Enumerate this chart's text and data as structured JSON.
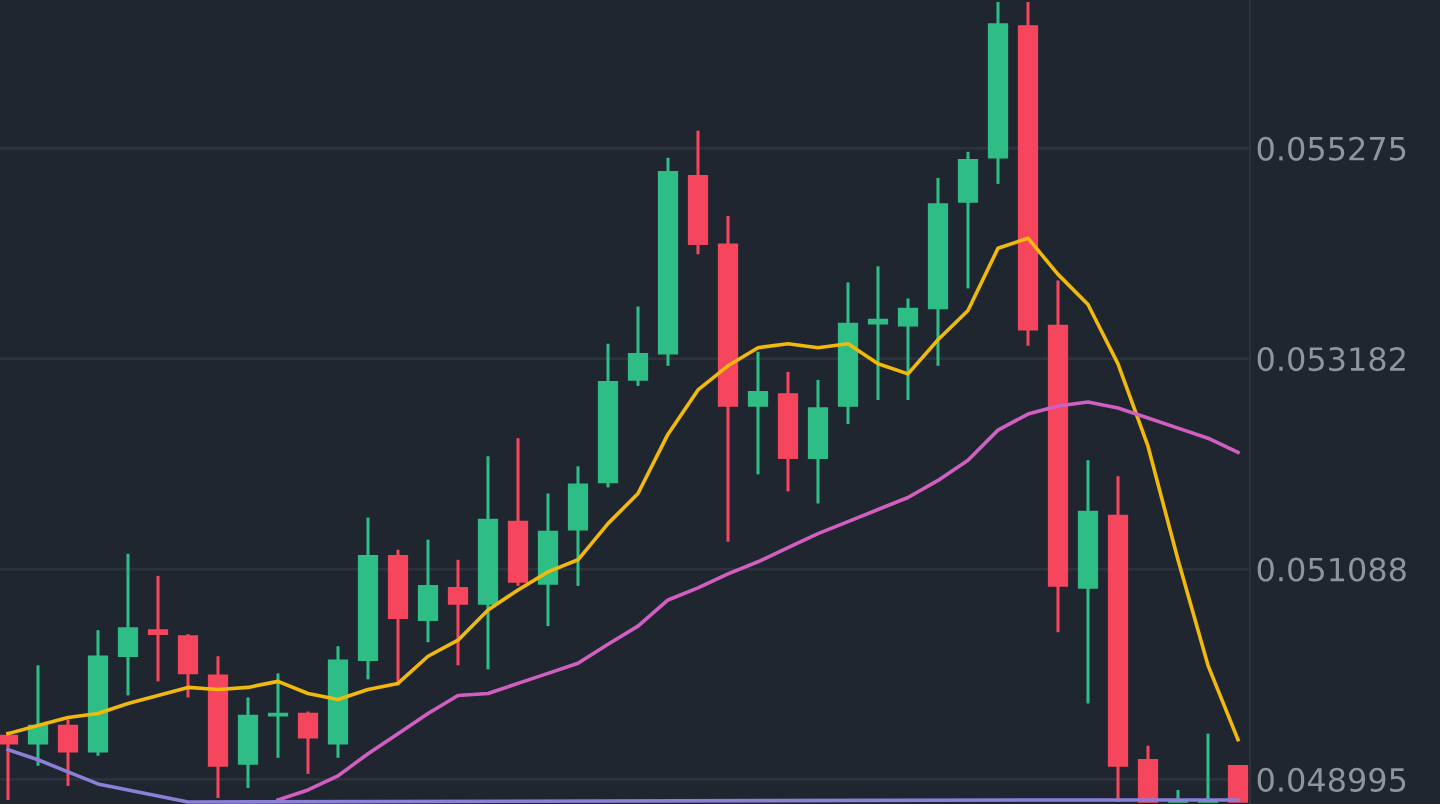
{
  "chart_data": {
    "type": "candlestick",
    "categories": [
      null,
      null,
      null,
      null,
      null,
      null,
      null,
      null,
      null,
      null,
      null,
      null,
      null,
      null,
      null,
      null,
      null,
      null,
      null,
      null,
      null,
      null,
      null,
      null,
      null,
      null,
      null,
      null,
      null,
      null,
      null,
      null,
      null,
      null,
      null,
      null,
      null,
      null,
      null,
      null,
      null,
      null
    ],
    "ohlc": [
      [
        0.04943,
        0.04947,
        0.04879,
        0.04935
      ],
      [
        0.04935,
        0.05013,
        0.04913,
        0.04953
      ],
      [
        0.04953,
        0.04959,
        0.04893,
        0.04927
      ],
      [
        0.04927,
        0.05048,
        0.04923,
        0.05022
      ],
      [
        0.05022,
        0.05124,
        0.04983,
        0.0505
      ],
      [
        0.05048,
        0.05102,
        0.04997,
        0.05044
      ],
      [
        0.05042,
        0.05044,
        0.04981,
        0.05005
      ],
      [
        0.05003,
        0.05022,
        0.04881,
        0.04913
      ],
      [
        0.04915,
        0.04981,
        0.04891,
        0.04963
      ],
      [
        0.04963,
        0.05005,
        0.04921,
        0.04965
      ],
      [
        0.04965,
        0.04967,
        0.04905,
        0.04941
      ],
      [
        0.04935,
        0.05032,
        0.04921,
        0.05018
      ],
      [
        0.05018,
        0.0516,
        0.04999,
        0.05122
      ],
      [
        0.05122,
        0.05128,
        0.04993,
        0.0506
      ],
      [
        0.05058,
        0.05138,
        0.05036,
        0.05092
      ],
      [
        0.0509,
        0.05118,
        0.05013,
        0.05074
      ],
      [
        0.05074,
        0.05221,
        0.05009,
        0.05158
      ],
      [
        0.05156,
        0.05239,
        0.05092,
        0.05096
      ],
      [
        0.05094,
        0.05184,
        0.05052,
        0.05146
      ],
      [
        0.05148,
        0.05211,
        0.05092,
        0.05193
      ],
      [
        0.05195,
        0.05333,
        0.0519,
        0.05295
      ],
      [
        0.05297,
        0.0537,
        0.05291,
        0.05323
      ],
      [
        0.05323,
        0.05518,
        0.05311,
        0.05504
      ],
      [
        0.055,
        0.05545,
        0.05422,
        0.05432
      ],
      [
        0.05432,
        0.0546,
        0.05136,
        0.05271
      ],
      [
        0.05271,
        0.05325,
        0.05203,
        0.05285
      ],
      [
        0.05283,
        0.05305,
        0.05186,
        0.05219
      ],
      [
        0.05219,
        0.05297,
        0.05174,
        0.05269
      ],
      [
        0.05271,
        0.05394,
        0.05253,
        0.05353
      ],
      [
        0.05353,
        0.0541,
        0.05277,
        0.05357
      ],
      [
        0.05351,
        0.05378,
        0.05277,
        0.05368
      ],
      [
        0.05368,
        0.05498,
        0.05311,
        0.05472
      ],
      [
        0.05474,
        0.05524,
        0.05388,
        0.05516
      ],
      [
        0.05518,
        0.05673,
        0.05492,
        0.05651
      ],
      [
        0.05649,
        0.05673,
        0.05331,
        0.05347
      ],
      [
        0.05351,
        0.05396,
        0.05046,
        0.05092
      ],
      [
        0.0509,
        0.05217,
        0.04975,
        0.05166
      ],
      [
        0.05162,
        0.05201,
        0.04877,
        0.04913
      ],
      [
        0.04919,
        0.04933,
        0.04877,
        0.04877
      ],
      [
        0.04877,
        0.04889,
        0.04877,
        0.04879
      ],
      [
        0.04877,
        0.04945,
        0.04877,
        0.04879
      ],
      [
        0.04913,
        0.04913,
        0.04877,
        0.04877
      ]
    ],
    "colors": [
      "#f6465d",
      "#2ebd85",
      "#f6465d",
      "#2ebd85",
      "#2ebd85",
      "#f6465d",
      "#f6465d",
      "#f6465d",
      "#2ebd85",
      "#2ebd85",
      "#f6465d",
      "#2ebd85",
      "#2ebd85",
      "#f6465d",
      "#2ebd85",
      "#f6465d",
      "#2ebd85",
      "#f6465d",
      "#2ebd85",
      "#2ebd85",
      "#2ebd85",
      "#2ebd85",
      "#2ebd85",
      "#f6465d",
      "#f6465d",
      "#2ebd85",
      "#f6465d",
      "#2ebd85",
      "#2ebd85",
      "#2ebd85",
      "#2ebd85",
      "#2ebd85",
      "#2ebd85",
      "#2ebd85",
      "#f6465d",
      "#f6465d",
      "#2ebd85",
      "#f6465d",
      "#f6465d",
      "#2ebd85",
      "#2ebd85",
      "#f6465d"
    ],
    "series": [
      {
        "type": "line",
        "color": "#f0b90b",
        "values": [
          0.04945,
          0.04953,
          0.04961,
          0.04965,
          0.04975,
          0.04983,
          0.04991,
          0.04989,
          0.04991,
          0.04997,
          0.04985,
          0.04979,
          0.04989,
          0.04995,
          0.05022,
          0.05038,
          0.05068,
          0.05088,
          0.05106,
          0.05118,
          0.05154,
          0.05184,
          0.05243,
          0.05287,
          0.05311,
          0.05329,
          0.05333,
          0.05329,
          0.05333,
          0.05313,
          0.05303,
          0.05337,
          0.05366,
          0.05428,
          0.05438,
          0.05402,
          0.05372,
          0.05313,
          0.05231,
          0.05118,
          0.05013,
          0.04939
        ]
      },
      {
        "type": "line",
        "color": "#d15fc0",
        "values": [
          null,
          null,
          null,
          null,
          null,
          null,
          null,
          null,
          null,
          0.04879,
          0.04889,
          0.04903,
          0.04925,
          0.04945,
          0.04965,
          0.04983,
          0.04985,
          0.04995,
          0.05005,
          0.05015,
          0.05034,
          0.05052,
          0.05078,
          0.0509,
          0.05104,
          0.05116,
          0.0513,
          0.05144,
          0.05156,
          0.05168,
          0.0518,
          0.05197,
          0.05217,
          0.05247,
          0.05263,
          0.05271,
          0.05275,
          0.05269,
          0.05259,
          0.05249,
          0.05239,
          0.05225
        ]
      },
      {
        "type": "line",
        "color": "#8c7fd8",
        "values": [
          0.04929,
          0.04919,
          0.04907,
          0.04895,
          0.04889,
          0.04883,
          0.04877,
          null,
          null,
          null,
          null,
          null,
          null,
          null,
          null,
          null,
          null,
          null,
          null,
          null,
          null,
          null,
          null,
          null,
          null,
          null,
          null,
          null,
          null,
          null,
          null,
          null,
          null,
          null,
          0.04879,
          0.04879,
          0.04879,
          0.04879,
          0.04879,
          0.04879,
          0.04879,
          0.04879
        ]
      }
    ],
    "ylim": [
      0.04875,
      0.05675
    ],
    "yticks": [
      0.048995,
      0.051088,
      0.053182,
      0.055275
    ],
    "tick_labels": "y",
    "grid": "y",
    "legend": false
  }
}
